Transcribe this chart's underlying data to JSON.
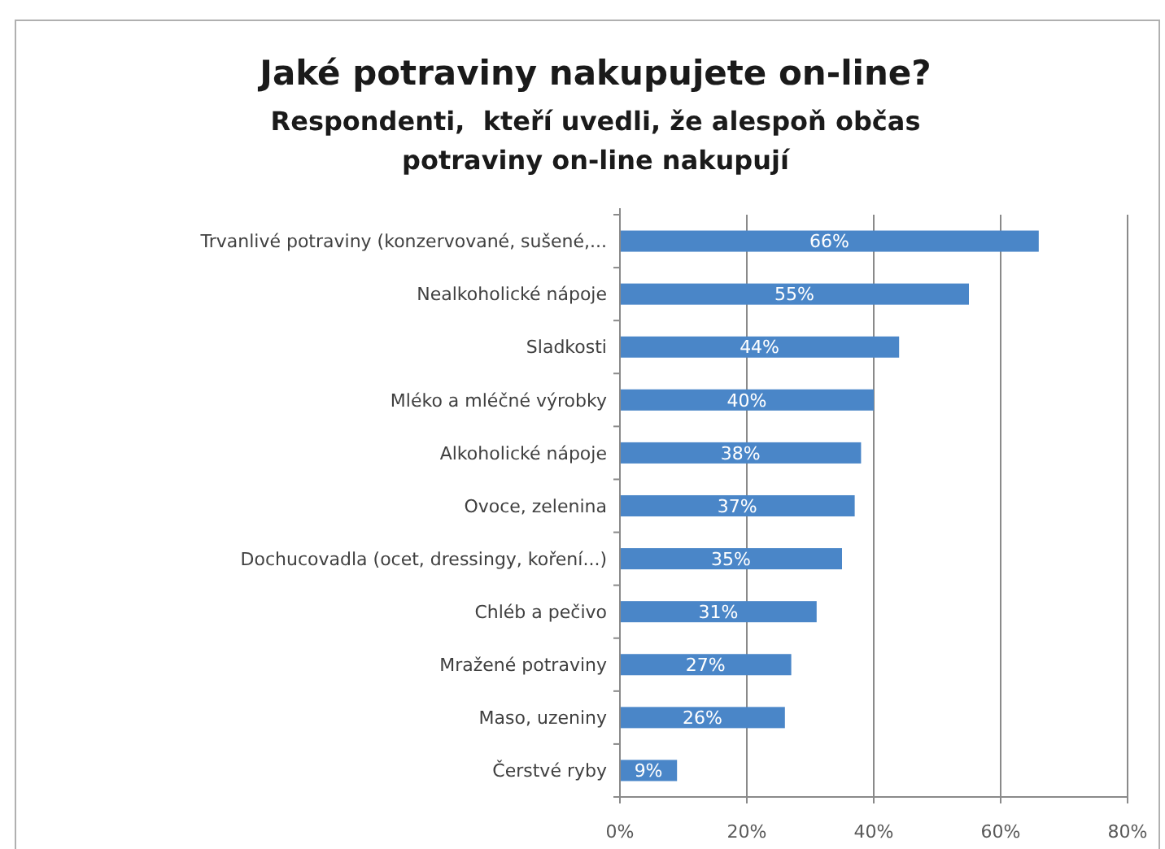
{
  "chart_data": {
    "type": "bar",
    "orientation": "horizontal",
    "title": "Jaké potraviny nakupujete on-line?",
    "subtitle": "Respondenti,  kteří uvedli, že alespoň občas\npotraviny on-line nakupují",
    "categories": [
      "Trvanlivé potraviny (konzervované, sušené,...",
      "Nealkoholické nápoje",
      "Sladkosti",
      "Mléko a mléčné výrobky",
      "Alkoholické nápoje",
      "Ovoce, zelenina",
      "Dochucovadla (ocet, dressingy, koření...)",
      "Chléb a pečivo",
      "Mražené potraviny",
      "Maso, uzeniny",
      "Čerstvé ryby"
    ],
    "values": [
      66,
      55,
      44,
      40,
      38,
      37,
      35,
      31,
      27,
      26,
      9
    ],
    "color": "#4a86c8",
    "value_labels": [
      "66%",
      "55%",
      "44%",
      "40%",
      "38%",
      "37%",
      "35%",
      "31%",
      "27%",
      "26%",
      "9%"
    ],
    "xlim": [
      0,
      80
    ],
    "xticks": [
      {
        "value": 0,
        "label": "0%"
      },
      {
        "value": 20,
        "label": "20%"
      },
      {
        "value": 40,
        "label": "40%"
      },
      {
        "value": 60,
        "label": "60%"
      },
      {
        "value": 80,
        "label": "80%"
      }
    ],
    "grid": "x"
  }
}
